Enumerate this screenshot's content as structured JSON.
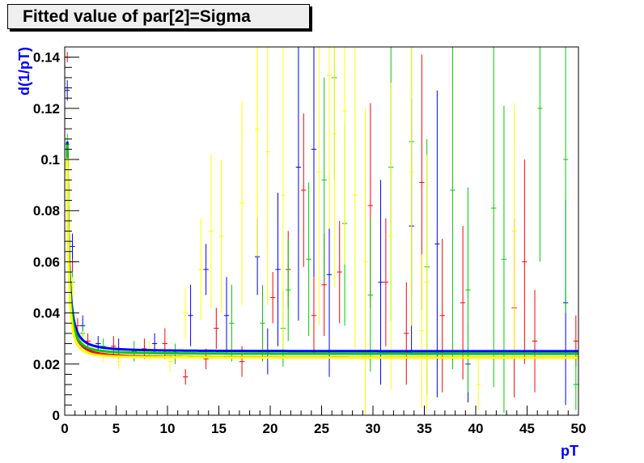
{
  "chart_data": {
    "type": "scatter",
    "title": "Fitted value of par[2]=Sigma",
    "xlabel": "pT",
    "ylabel": "d(1/pT)",
    "xlim": [
      0,
      50
    ],
    "ylim": [
      0,
      0.144
    ],
    "x_ticks": [
      0,
      5,
      10,
      15,
      20,
      25,
      30,
      35,
      40,
      45,
      50
    ],
    "y_ticks": [
      0,
      0.02,
      0.04,
      0.06,
      0.08,
      0.1,
      0.12,
      0.14
    ],
    "x_tick_labels": [
      "0",
      "5",
      "10",
      "15",
      "20",
      "25",
      "30",
      "35",
      "40",
      "45",
      "50"
    ],
    "y_tick_labels": [
      "0",
      "0.02",
      "0.04",
      "0.06",
      "0.08",
      "0.1",
      "0.12",
      "0.14"
    ],
    "grid": false,
    "legend": "none",
    "series": [
      {
        "color": "#ff0000",
        "fit": {
          "a": 0.0225,
          "b": 0.029,
          "c": 0.5,
          "p": 1.5
        },
        "points": [
          {
            "x": 0.25,
            "y": 0.14,
            "e": 0.002
          },
          {
            "x": 0.75,
            "y": 0.06,
            "e": 0.004
          },
          {
            "x": 1.25,
            "y": 0.035,
            "e": 0.003
          },
          {
            "x": 2.25,
            "y": 0.029,
            "e": 0.003
          },
          {
            "x": 4.75,
            "y": 0.027,
            "e": 0.004
          },
          {
            "x": 7.75,
            "y": 0.026,
            "e": 0.004
          },
          {
            "x": 9.75,
            "y": 0.028,
            "e": 0.006
          },
          {
            "x": 11.75,
            "y": 0.015,
            "e": 0.003
          },
          {
            "x": 13.75,
            "y": 0.022,
            "e": 0.004
          },
          {
            "x": 14.75,
            "y": 0.034,
            "e": 0.008
          },
          {
            "x": 17.25,
            "y": 0.021,
            "e": 0.006
          },
          {
            "x": 20.25,
            "y": 0.046,
            "e": 0.01
          },
          {
            "x": 21.75,
            "y": 0.057,
            "e": 0.015
          },
          {
            "x": 23.25,
            "y": 0.088,
            "e": 0.03
          },
          {
            "x": 24.25,
            "y": 0.039,
            "e": 0.015
          },
          {
            "x": 25.25,
            "y": 0.051,
            "e": 0.02
          },
          {
            "x": 26.75,
            "y": 0.056,
            "e": 0.02
          },
          {
            "x": 29.75,
            "y": 0.082,
            "e": 0.04
          },
          {
            "x": 31.25,
            "y": 0.052,
            "e": 0.025
          },
          {
            "x": 33.25,
            "y": 0.032,
            "e": 0.02
          },
          {
            "x": 34.75,
            "y": 0.091,
            "e": 0.05
          },
          {
            "x": 36.75,
            "y": 0.039,
            "e": 0.03
          },
          {
            "x": 38.75,
            "y": 0.044,
            "e": 0.03
          },
          {
            "x": 43.75,
            "y": 0.042,
            "e": 0.035
          },
          {
            "x": 44.75,
            "y": 0.06,
            "e": 0.04
          },
          {
            "x": 45.75,
            "y": 0.029,
            "e": 0.02
          },
          {
            "x": 49.75,
            "y": 0.029,
            "e": 0.01
          }
        ]
      },
      {
        "color": "#0000ff",
        "fit": {
          "a": 0.025,
          "b": 0.029,
          "c": 0.5,
          "p": 1.5
        },
        "points": [
          {
            "x": 0.25,
            "y": 0.127,
            "e": 0.004
          },
          {
            "x": 0.75,
            "y": 0.066,
            "e": 0.005
          },
          {
            "x": 1.75,
            "y": 0.035,
            "e": 0.004
          },
          {
            "x": 3.25,
            "y": 0.028,
            "e": 0.003
          },
          {
            "x": 5.25,
            "y": 0.026,
            "e": 0.004
          },
          {
            "x": 8.75,
            "y": 0.028,
            "e": 0.004
          },
          {
            "x": 12.25,
            "y": 0.039,
            "e": 0.012
          },
          {
            "x": 13.75,
            "y": 0.057,
            "e": 0.01
          },
          {
            "x": 15.75,
            "y": 0.039,
            "e": 0.015
          },
          {
            "x": 18.75,
            "y": 0.062,
            "e": 0.015
          },
          {
            "x": 19.75,
            "y": 0.025,
            "e": 0.009
          },
          {
            "x": 20.75,
            "y": 0.057,
            "e": 0.03
          },
          {
            "x": 22.75,
            "y": 0.097,
            "e": 0.06
          },
          {
            "x": 24.25,
            "y": 0.104,
            "e": 0.05
          },
          {
            "x": 25.75,
            "y": 0.055,
            "e": 0.04
          },
          {
            "x": 30.75,
            "y": 0.052,
            "e": 0.04
          },
          {
            "x": 33.75,
            "y": 0.074,
            "e": 0.05
          },
          {
            "x": 36.25,
            "y": 0.067,
            "e": 0.06
          },
          {
            "x": 39.25,
            "y": 0.02,
            "e": 0.015
          },
          {
            "x": 48.75,
            "y": 0.044,
            "e": 0.04
          }
        ]
      },
      {
        "color": "#00cc00",
        "fit": {
          "a": 0.024,
          "b": 0.027,
          "c": 0.5,
          "p": 1.6
        },
        "points": [
          {
            "x": 0.25,
            "y": 0.106,
            "e": 0.004
          },
          {
            "x": 0.75,
            "y": 0.052,
            "e": 0.004
          },
          {
            "x": 1.75,
            "y": 0.032,
            "e": 0.003
          },
          {
            "x": 3.75,
            "y": 0.027,
            "e": 0.003
          },
          {
            "x": 6.75,
            "y": 0.025,
            "e": 0.004
          },
          {
            "x": 10.75,
            "y": 0.024,
            "e": 0.004
          },
          {
            "x": 16.25,
            "y": 0.036,
            "e": 0.015
          },
          {
            "x": 19.25,
            "y": 0.036,
            "e": 0.015
          },
          {
            "x": 21.25,
            "y": 0.034,
            "e": 0.015
          },
          {
            "x": 21.75,
            "y": 0.049,
            "e": 0.02
          },
          {
            "x": 23.75,
            "y": 0.061,
            "e": 0.03
          },
          {
            "x": 25.25,
            "y": 0.092,
            "e": 0.04
          },
          {
            "x": 26.25,
            "y": 0.132,
            "e": 0.04
          },
          {
            "x": 27.25,
            "y": 0.075,
            "e": 0.04
          },
          {
            "x": 29.75,
            "y": 0.047,
            "e": 0.03
          },
          {
            "x": 31.75,
            "y": 0.097,
            "e": 0.06
          },
          {
            "x": 33.75,
            "y": 0.107,
            "e": 0.06
          },
          {
            "x": 35.25,
            "y": 0.058,
            "e": 0.05
          },
          {
            "x": 37.75,
            "y": 0.088,
            "e": 0.07
          },
          {
            "x": 39.25,
            "y": 0.049,
            "e": 0.04
          },
          {
            "x": 41.75,
            "y": 0.081,
            "e": 0.07
          },
          {
            "x": 42.75,
            "y": 0.061,
            "e": 0.06
          },
          {
            "x": 46.25,
            "y": 0.12,
            "e": 0.06
          },
          {
            "x": 48.75,
            "y": 0.1,
            "e": 0.06
          },
          {
            "x": 49.75,
            "y": 0.012,
            "e": 0.01
          }
        ]
      },
      {
        "color": "#ffff00",
        "fit": {
          "a": 0.0225,
          "b": 0.024,
          "c": 0.5,
          "p": 1.7
        },
        "points": [
          {
            "x": 0.25,
            "y": 0.098,
            "e": 0.004
          },
          {
            "x": 0.75,
            "y": 0.05,
            "e": 0.004
          },
          {
            "x": 1.75,
            "y": 0.03,
            "e": 0.003
          },
          {
            "x": 3.75,
            "y": 0.024,
            "e": 0.003
          },
          {
            "x": 5.25,
            "y": 0.021,
            "e": 0.003
          },
          {
            "x": 8.25,
            "y": 0.025,
            "e": 0.004
          },
          {
            "x": 10.25,
            "y": 0.021,
            "e": 0.004
          },
          {
            "x": 11.75,
            "y": 0.04,
            "e": 0.01
          },
          {
            "x": 13.25,
            "y": 0.057,
            "e": 0.02
          },
          {
            "x": 14.25,
            "y": 0.072,
            "e": 0.03
          },
          {
            "x": 15.25,
            "y": 0.07,
            "e": 0.03
          },
          {
            "x": 17.25,
            "y": 0.083,
            "e": 0.04
          },
          {
            "x": 18.75,
            "y": 0.112,
            "e": 0.05
          },
          {
            "x": 19.75,
            "y": 0.103,
            "e": 0.06
          },
          {
            "x": 21.25,
            "y": 0.086,
            "e": 0.06
          },
          {
            "x": 24.75,
            "y": 0.095,
            "e": 0.06
          },
          {
            "x": 25.75,
            "y": 0.133,
            "e": 0.06
          },
          {
            "x": 26.25,
            "y": 0.11,
            "e": 0.06
          },
          {
            "x": 27.25,
            "y": 0.119,
            "e": 0.06
          },
          {
            "x": 28.25,
            "y": 0.086,
            "e": 0.06
          },
          {
            "x": 29.25,
            "y": 0.06,
            "e": 0.06
          },
          {
            "x": 31.75,
            "y": 0.07,
            "e": 0.06
          },
          {
            "x": 33.75,
            "y": 0.095,
            "e": 0.06
          },
          {
            "x": 34.75,
            "y": 0.033,
            "e": 0.03
          },
          {
            "x": 35.25,
            "y": 0.052,
            "e": 0.05
          },
          {
            "x": 40.25,
            "y": 0.012,
            "e": 0.01
          },
          {
            "x": 43.75,
            "y": 0.072,
            "e": 0.05
          }
        ]
      }
    ]
  }
}
